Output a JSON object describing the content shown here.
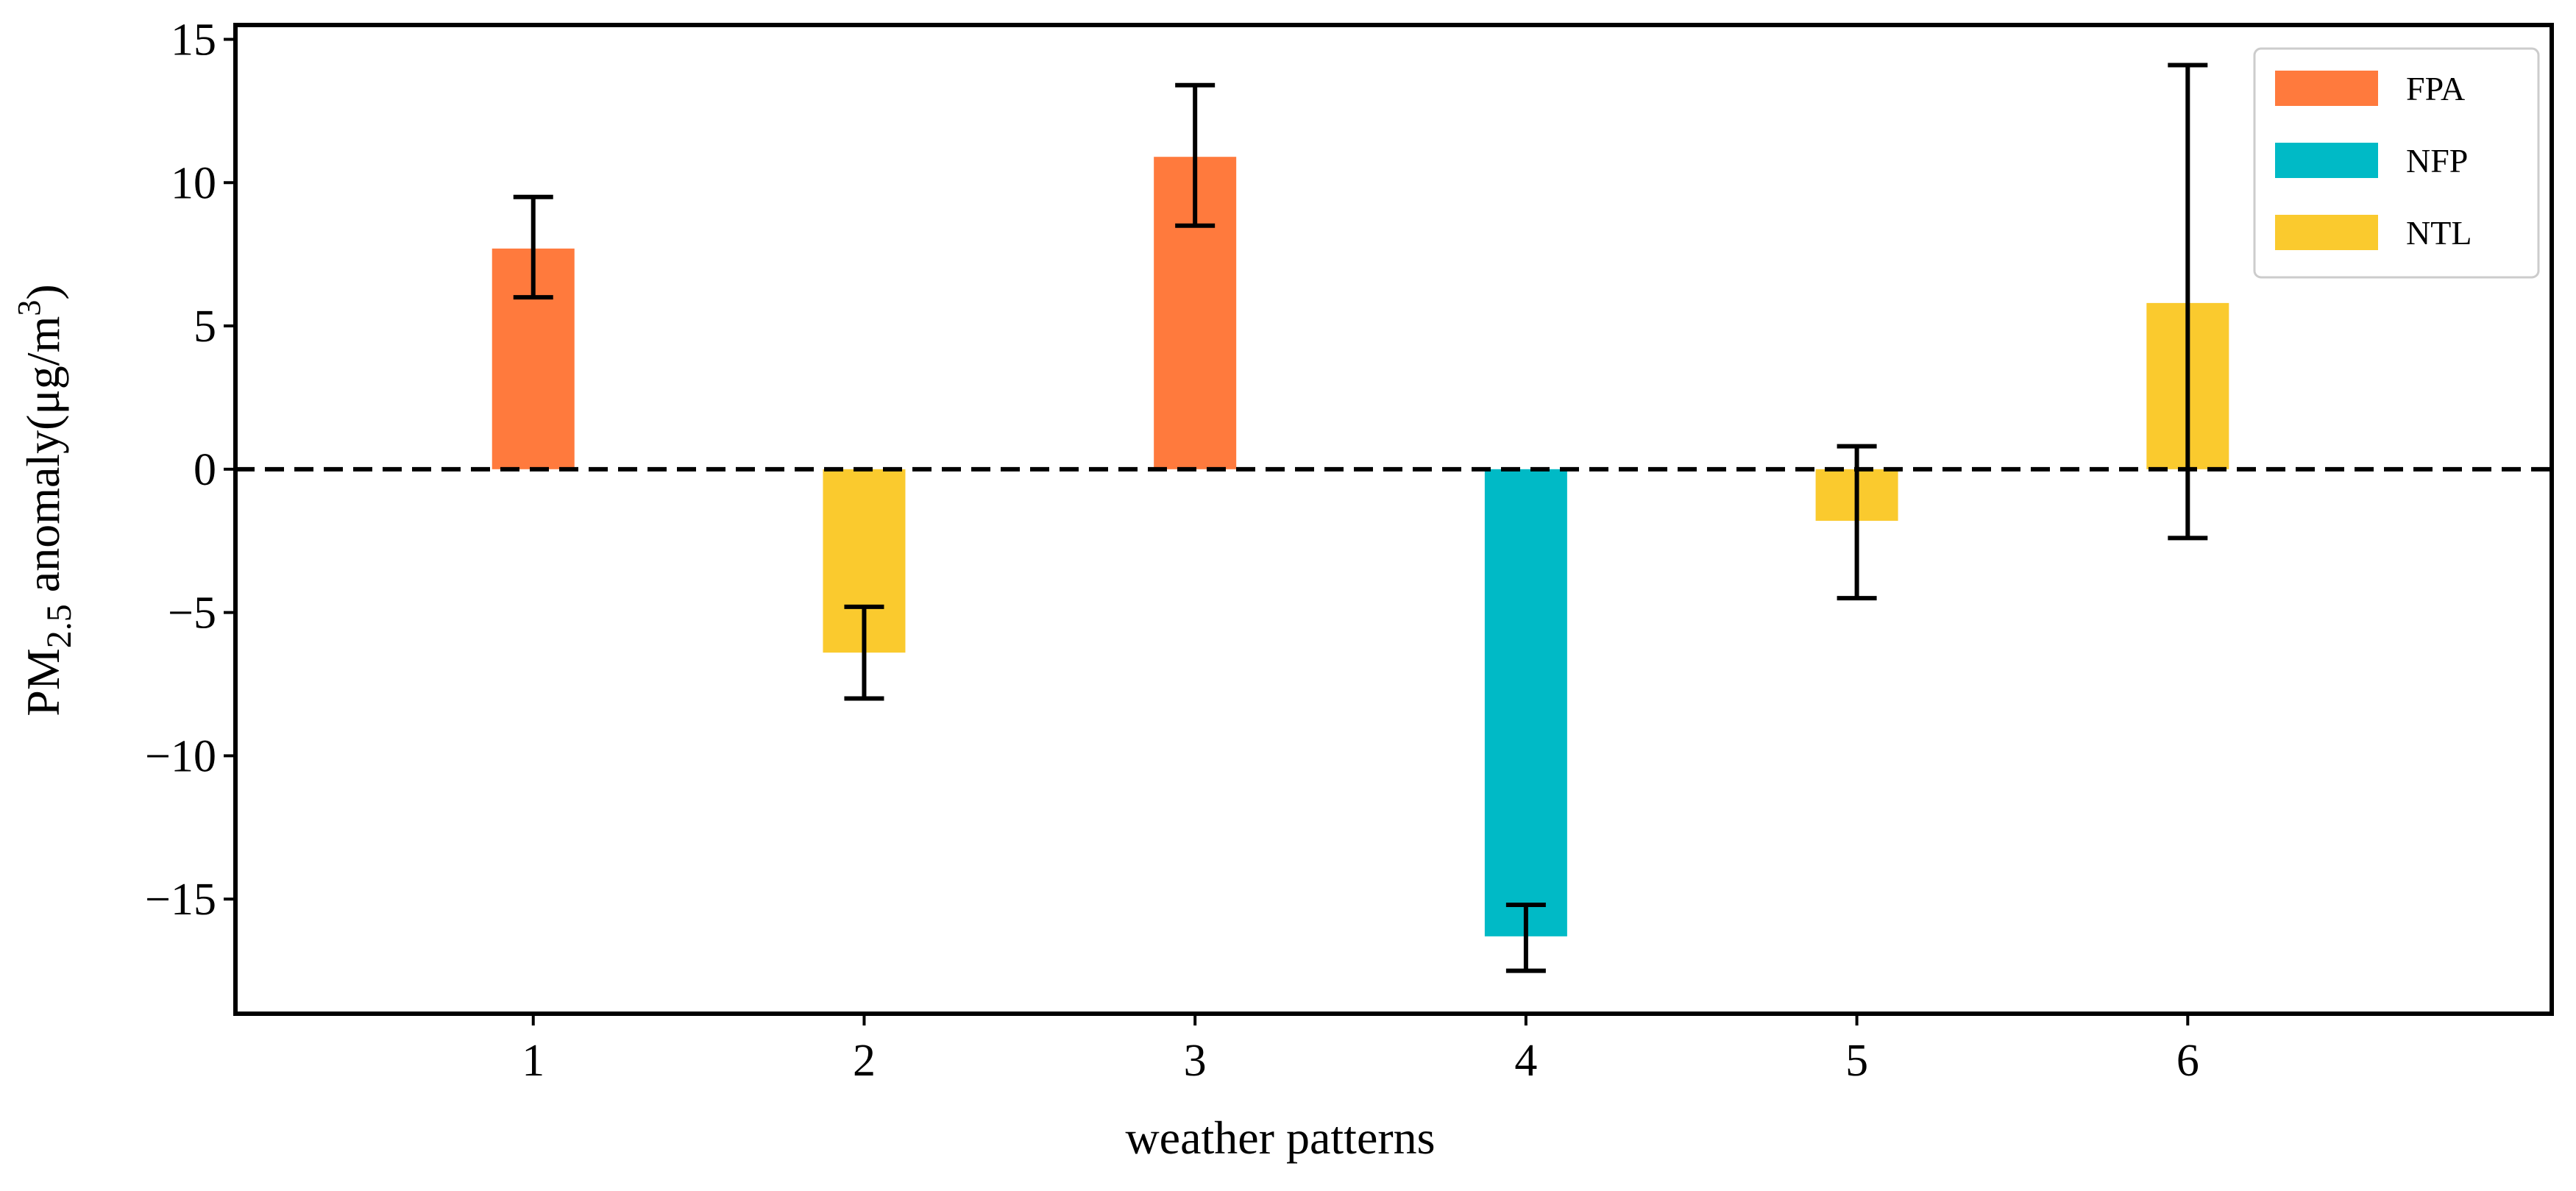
{
  "chart_data": {
    "type": "bar",
    "title": "",
    "xlabel": "weather patterns",
    "ylabel": {
      "prefix": "PM",
      "subscript": "2.5",
      "middle": " anomaly(μg/m",
      "superscript": "3",
      "suffix": ")"
    },
    "ylim": [
      -19,
      15.5
    ],
    "xlim": [
      0.1,
      7.1
    ],
    "yticks": [
      15,
      10,
      5,
      0,
      -5,
      -10,
      -15
    ],
    "ytick_labels": [
      "15",
      "10",
      "5",
      "0",
      "−5",
      "−10",
      "−15"
    ],
    "xticks": [
      1,
      2,
      3,
      4,
      5,
      6
    ],
    "categories": [
      "1",
      "2",
      "3",
      "4",
      "5",
      "6"
    ],
    "values": [
      7.7,
      -6.4,
      10.9,
      -16.3,
      -1.8,
      5.8
    ],
    "error_low": [
      6.0,
      -8.0,
      8.5,
      -17.5,
      -4.5,
      -2.4
    ],
    "error_high": [
      9.5,
      -4.8,
      13.4,
      -15.2,
      0.8,
      14.1
    ],
    "groups": [
      "FPA",
      "NTL",
      "FPA",
      "NFP",
      "NTL",
      "NTL"
    ],
    "reference_line": 0,
    "grid": false,
    "legend": {
      "position": "top-right",
      "entries": [
        {
          "label": "FPA",
          "color": "#FF7A3D"
        },
        {
          "label": "NFP",
          "color": "#00BAC6"
        },
        {
          "label": "NTL",
          "color": "#FACA2E"
        }
      ]
    }
  }
}
